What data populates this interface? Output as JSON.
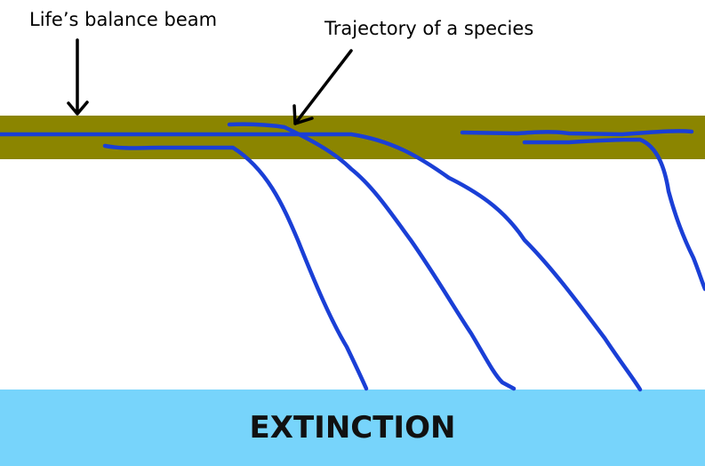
{
  "annotations": {
    "beam_label": "Life’s balance beam",
    "trajectory_label": "Trajectory of a species",
    "extinction_label": "EXTINCTION"
  },
  "colors": {
    "beam": "#8b8500",
    "extinction_zone": "#77d4fb",
    "trajectory": "#1a3fd6",
    "arrow": "#000000",
    "background": "#ffffff"
  }
}
